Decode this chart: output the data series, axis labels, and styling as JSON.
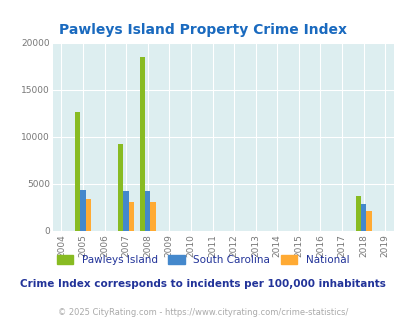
{
  "title": "Pawleys Island Property Crime Index",
  "years": [
    2004,
    2005,
    2006,
    2007,
    2008,
    2009,
    2010,
    2011,
    2012,
    2013,
    2014,
    2015,
    2016,
    2017,
    2018,
    2019
  ],
  "pawleys": [
    0,
    12700,
    0,
    9300,
    18500,
    0,
    0,
    0,
    0,
    0,
    0,
    0,
    0,
    0,
    3700,
    0
  ],
  "south_carolina": [
    0,
    4400,
    0,
    4200,
    4300,
    0,
    0,
    0,
    0,
    0,
    0,
    0,
    0,
    0,
    2900,
    0
  ],
  "national": [
    0,
    3400,
    0,
    3050,
    3100,
    0,
    0,
    0,
    0,
    0,
    0,
    0,
    0,
    0,
    2100,
    0
  ],
  "color_pawleys": "#88bb22",
  "color_sc": "#4488cc",
  "color_national": "#ffaa33",
  "bg_color": "#ddeef0",
  "ylim": [
    0,
    20000
  ],
  "yticks": [
    0,
    5000,
    10000,
    15000,
    20000
  ],
  "legend_labels": [
    "Pawleys Island",
    "South Carolina",
    "National"
  ],
  "note": "Crime Index corresponds to incidents per 100,000 inhabitants",
  "footer": "© 2025 CityRating.com - https://www.cityrating.com/crime-statistics/",
  "title_color": "#1a6abf",
  "note_color": "#223399",
  "footer_color": "#aaaaaa",
  "bar_width": 0.25
}
